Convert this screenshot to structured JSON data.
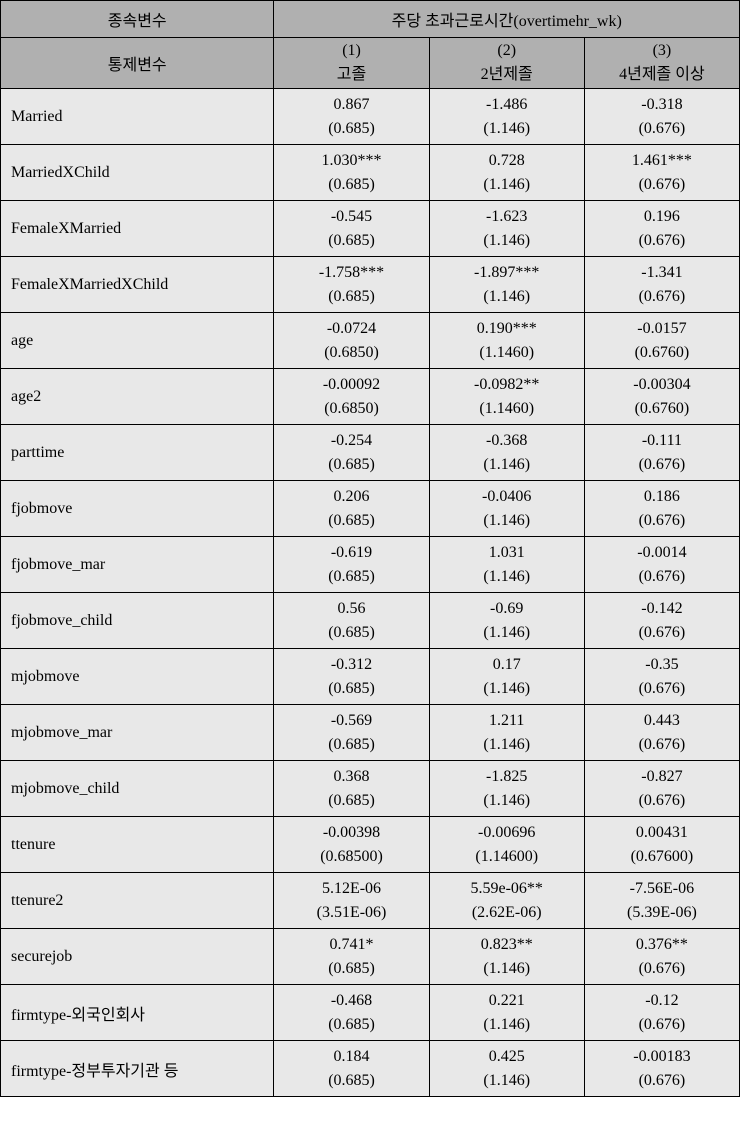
{
  "headers": {
    "dependent_var_label": "종속변수",
    "control_var_label": "통제변수",
    "spanning_header": "주당 초과근로시간(overtimehr_wk)",
    "col1_num": "(1)",
    "col1_label": "고졸",
    "col2_num": "(2)",
    "col2_label": "2년제졸",
    "col3_num": "(3)",
    "col3_label": "4년제졸 이상"
  },
  "rows": [
    {
      "label": "Married",
      "c1v": "0.867",
      "c1s": "(0.685)",
      "c2v": "-1.486",
      "c2s": "(1.146)",
      "c3v": "-0.318",
      "c3s": "(0.676)"
    },
    {
      "label": "MarriedXChild",
      "c1v": "1.030***",
      "c1s": "(0.685)",
      "c2v": "0.728",
      "c2s": "(1.146)",
      "c3v": "1.461***",
      "c3s": "(0.676)"
    },
    {
      "label": "FemaleXMarried",
      "c1v": "-0.545",
      "c1s": "(0.685)",
      "c2v": "-1.623",
      "c2s": "(1.146)",
      "c3v": "0.196",
      "c3s": "(0.676)"
    },
    {
      "label": "FemaleXMarriedXChild",
      "c1v": "-1.758***",
      "c1s": "(0.685)",
      "c2v": "-1.897***",
      "c2s": "(1.146)",
      "c3v": "-1.341",
      "c3s": "(0.676)"
    },
    {
      "label": "age",
      "c1v": "-0.0724",
      "c1s": "(0.6850)",
      "c2v": "0.190***",
      "c2s": "(1.1460)",
      "c3v": "-0.0157",
      "c3s": "(0.6760)"
    },
    {
      "label": "age2",
      "c1v": "-0.00092",
      "c1s": "(0.6850)",
      "c2v": "-0.0982**",
      "c2s": "(1.1460)",
      "c3v": "-0.00304",
      "c3s": "(0.6760)"
    },
    {
      "label": "parttime",
      "c1v": "-0.254",
      "c1s": "(0.685)",
      "c2v": "-0.368",
      "c2s": "(1.146)",
      "c3v": "-0.111",
      "c3s": "(0.676)"
    },
    {
      "label": "fjobmove",
      "c1v": "0.206",
      "c1s": "(0.685)",
      "c2v": "-0.0406",
      "c2s": "(1.146)",
      "c3v": "0.186",
      "c3s": "(0.676)"
    },
    {
      "label": "fjobmove_mar",
      "c1v": "-0.619",
      "c1s": "(0.685)",
      "c2v": "1.031",
      "c2s": "(1.146)",
      "c3v": "-0.0014",
      "c3s": "(0.676)"
    },
    {
      "label": "fjobmove_child",
      "c1v": "0.56",
      "c1s": "(0.685)",
      "c2v": "-0.69",
      "c2s": "(1.146)",
      "c3v": "-0.142",
      "c3s": "(0.676)"
    },
    {
      "label": "mjobmove",
      "c1v": "-0.312",
      "c1s": "(0.685)",
      "c2v": "0.17",
      "c2s": "(1.146)",
      "c3v": "-0.35",
      "c3s": "(0.676)"
    },
    {
      "label": "mjobmove_mar",
      "c1v": "-0.569",
      "c1s": "(0.685)",
      "c2v": "1.211",
      "c2s": "(1.146)",
      "c3v": "0.443",
      "c3s": "(0.676)"
    },
    {
      "label": "mjobmove_child",
      "c1v": "0.368",
      "c1s": "(0.685)",
      "c2v": "-1.825",
      "c2s": "(1.146)",
      "c3v": "-0.827",
      "c3s": "(0.676)"
    },
    {
      "label": "ttenure",
      "c1v": "-0.00398",
      "c1s": "(0.68500)",
      "c2v": "-0.00696",
      "c2s": "(1.14600)",
      "c3v": "0.00431",
      "c3s": "(0.67600)"
    },
    {
      "label": "ttenure2",
      "c1v": "5.12E-06",
      "c1s": "(3.51E-06)",
      "c2v": "5.59e-06**",
      "c2s": "(2.62E-06)",
      "c3v": "-7.56E-06",
      "c3s": "(5.39E-06)"
    },
    {
      "label": "securejob",
      "c1v": "0.741*",
      "c1s": "(0.685)",
      "c2v": "0.823**",
      "c2s": "(1.146)",
      "c3v": "0.376**",
      "c3s": "(0.676)"
    },
    {
      "label": "firmtype-외국인회사",
      "c1v": "-0.468",
      "c1s": "(0.685)",
      "c2v": "0.221",
      "c2s": "(1.146)",
      "c3v": "-0.12",
      "c3s": "(0.676)"
    },
    {
      "label": "firmtype-정부투자기관 등",
      "c1v": "0.184",
      "c1s": "(0.685)",
      "c2v": "0.425",
      "c2s": "(1.146)",
      "c3v": "-0.00183",
      "c3s": "(0.676)"
    }
  ]
}
